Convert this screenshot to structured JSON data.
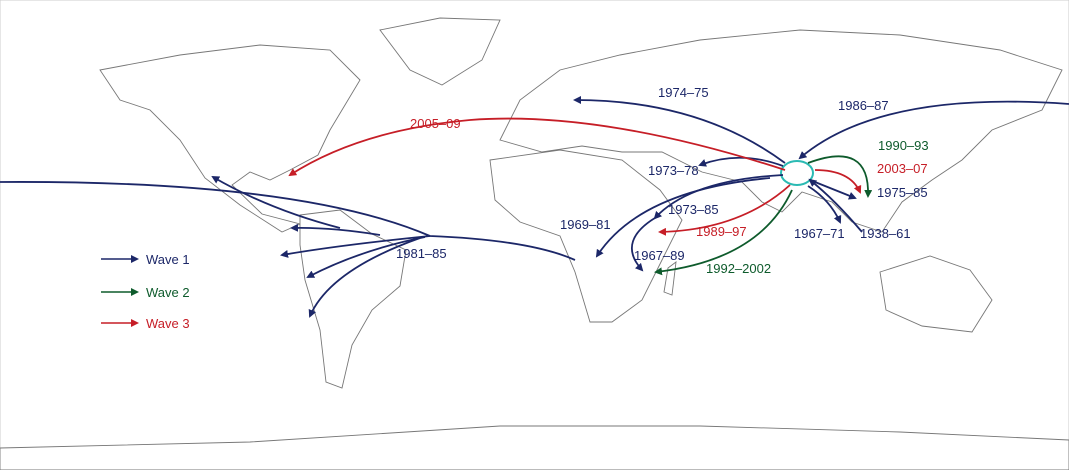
{
  "colors": {
    "wave1": "#1c2768",
    "wave2": "#0e5b2c",
    "wave3": "#c61e27",
    "origin": "#2bbab3",
    "land_stroke": "#777777"
  },
  "legend": [
    {
      "label": "Wave 1",
      "wave": "wave1"
    },
    {
      "label": "Wave 2",
      "wave": "wave2"
    },
    {
      "label": "Wave 3",
      "wave": "wave3"
    }
  ],
  "routes": [
    {
      "label": "1974–75",
      "wave": "wave1"
    },
    {
      "label": "1986–87",
      "wave": "wave1"
    },
    {
      "label": "1973–78",
      "wave": "wave1"
    },
    {
      "label": "1973–85",
      "wave": "wave1"
    },
    {
      "label": "1969–81",
      "wave": "wave1"
    },
    {
      "label": "1967–89",
      "wave": "wave1"
    },
    {
      "label": "1967–71",
      "wave": "wave1"
    },
    {
      "label": "1938–61",
      "wave": "wave1"
    },
    {
      "label": "1975–85",
      "wave": "wave1"
    },
    {
      "label": "1981–85",
      "wave": "wave1"
    },
    {
      "label": "1990–93",
      "wave": "wave2"
    },
    {
      "label": "1992–2002",
      "wave": "wave2"
    },
    {
      "label": "2005–09",
      "wave": "wave3"
    },
    {
      "label": "2003–07",
      "wave": "wave3"
    },
    {
      "label": "1989–97",
      "wave": "wave3"
    }
  ]
}
